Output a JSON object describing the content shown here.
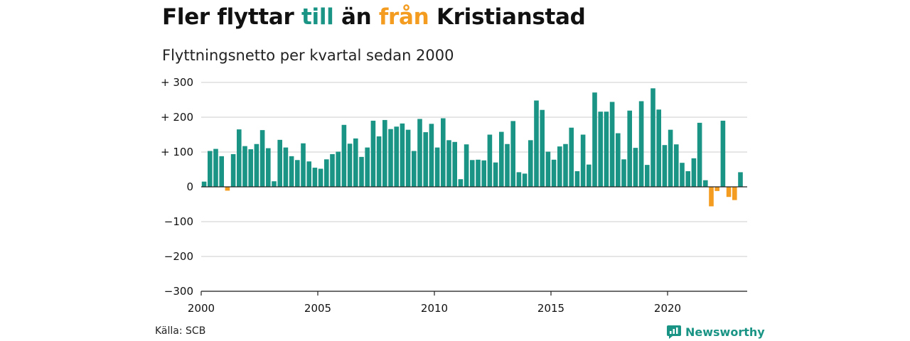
{
  "header": {
    "title_parts": [
      "Fler flyttar",
      "till",
      "än",
      "från",
      "Kristianstad"
    ],
    "subtitle": "Flyttningsnetto per kvartal sedan 2000"
  },
  "footer": {
    "source": "Källa: SCB",
    "brand": "Newsworthy",
    "brand_icon": "newsworthy-logo-icon"
  },
  "colors": {
    "positive": "#1a9485",
    "negative": "#f39c1f",
    "grid": "#dddddd",
    "zero_line": "#222222"
  },
  "chart_data": {
    "type": "bar",
    "title": "",
    "xlabel": "",
    "ylabel": "",
    "ylim": [
      -300,
      300
    ],
    "y_ticks": [
      300,
      200,
      100,
      0,
      -100,
      -200,
      -300
    ],
    "y_tick_labels": [
      "+ 300",
      "+ 200",
      "+ 100",
      "0",
      "−100",
      "−200",
      "−300"
    ],
    "x_tick_labels": [
      "2000",
      "2005",
      "2010",
      "2015",
      "2020"
    ],
    "x_tick_years": [
      2000,
      2005,
      2010,
      2015,
      2020
    ],
    "start": "2000 Q1",
    "grid": true,
    "categories": [
      "2000 Q1",
      "2000 Q2",
      "2000 Q3",
      "2000 Q4",
      "2001 Q1",
      "2001 Q2",
      "2001 Q3",
      "2001 Q4",
      "2002 Q1",
      "2002 Q2",
      "2002 Q3",
      "2002 Q4",
      "2003 Q1",
      "2003 Q2",
      "2003 Q3",
      "2003 Q4",
      "2004 Q1",
      "2004 Q2",
      "2004 Q3",
      "2004 Q4",
      "2005 Q1",
      "2005 Q2",
      "2005 Q3",
      "2005 Q4",
      "2006 Q1",
      "2006 Q2",
      "2006 Q3",
      "2006 Q4",
      "2007 Q1",
      "2007 Q2",
      "2007 Q3",
      "2007 Q4",
      "2008 Q1",
      "2008 Q2",
      "2008 Q3",
      "2008 Q4",
      "2009 Q1",
      "2009 Q2",
      "2009 Q3",
      "2009 Q4",
      "2010 Q1",
      "2010 Q2",
      "2010 Q3",
      "2010 Q4",
      "2011 Q1",
      "2011 Q2",
      "2011 Q3",
      "2011 Q4",
      "2012 Q1",
      "2012 Q2",
      "2012 Q3",
      "2012 Q4",
      "2013 Q1",
      "2013 Q2",
      "2013 Q3",
      "2013 Q4",
      "2014 Q1",
      "2014 Q2",
      "2014 Q3",
      "2014 Q4",
      "2015 Q1",
      "2015 Q2",
      "2015 Q3",
      "2015 Q4",
      "2016 Q1",
      "2016 Q2",
      "2016 Q3",
      "2016 Q4",
      "2017 Q1",
      "2017 Q2",
      "2017 Q3",
      "2017 Q4",
      "2018 Q1",
      "2018 Q2",
      "2018 Q3",
      "2018 Q4",
      "2019 Q1",
      "2019 Q2",
      "2019 Q3",
      "2019 Q4",
      "2020 Q1",
      "2020 Q2",
      "2020 Q3",
      "2020 Q4",
      "2021 Q1",
      "2021 Q2",
      "2021 Q3",
      "2021 Q4",
      "2022 Q1",
      "2022 Q2",
      "2022 Q3",
      "2022 Q4",
      "2023 Q1",
      "2023 Q2"
    ],
    "values": [
      15,
      103,
      109,
      88,
      -11,
      94,
      165,
      117,
      108,
      123,
      163,
      111,
      16,
      135,
      113,
      88,
      77,
      125,
      73,
      55,
      52,
      79,
      94,
      101,
      178,
      124,
      139,
      86,
      113,
      190,
      145,
      192,
      166,
      173,
      182,
      164,
      103,
      195,
      157,
      181,
      113,
      197,
      134,
      129,
      22,
      122,
      77,
      78,
      76,
      150,
      70,
      158,
      123,
      189,
      42,
      38,
      134,
      248,
      221,
      101,
      78,
      116,
      123,
      170,
      45,
      150,
      64,
      271,
      216,
      216,
      244,
      154,
      79,
      219,
      112,
      246,
      63,
      283,
      222,
      120,
      164,
      122,
      69,
      45,
      82,
      184,
      19,
      -56,
      -12,
      190,
      -29,
      -38,
      42,
      0
    ]
  }
}
